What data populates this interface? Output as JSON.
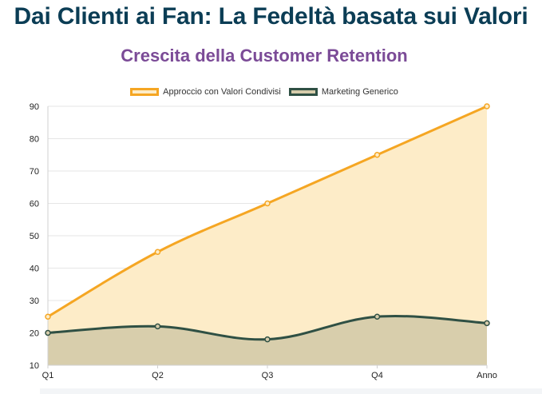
{
  "header": {
    "title": "Dai Clienti ai Fan: La Fedeltà basata sui Valori"
  },
  "chart_data": {
    "type": "area",
    "title": "Crescita della Customer Retention",
    "xlabel": "",
    "ylabel": "",
    "categories": [
      "Q1",
      "Q2",
      "Q3",
      "Q4",
      "Anno"
    ],
    "ylim": [
      10,
      90
    ],
    "yticks": [
      10,
      20,
      30,
      40,
      50,
      60,
      70,
      80,
      90
    ],
    "grid": true,
    "legend_position": "top",
    "series": [
      {
        "name": "Approccio con Valori Condivisi",
        "values": [
          25,
          45,
          60,
          75,
          90
        ],
        "line_color": "#f5a623",
        "fill_color": "#fdecc8"
      },
      {
        "name": "Marketing Generico",
        "values": [
          20,
          22,
          18,
          25,
          23
        ],
        "line_color": "#2f5044",
        "fill_color": "#d6ccab"
      }
    ]
  }
}
